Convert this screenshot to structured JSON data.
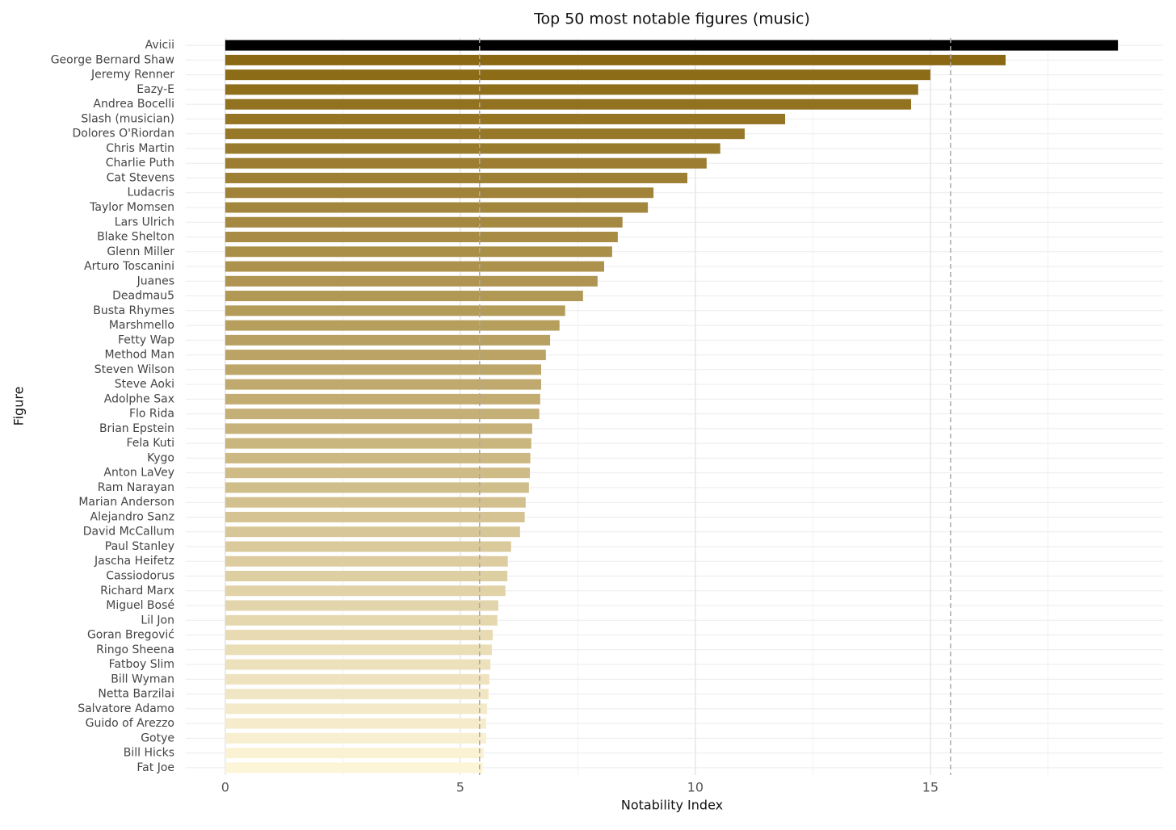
{
  "chart_data": {
    "type": "barh",
    "title": "Top 50 most notable figures (music)",
    "x_label": "Notability Index",
    "y_label": "Figure",
    "categories": [
      "Avicii",
      "George Bernard Shaw",
      "Jeremy Renner",
      "Eazy-E",
      "Andrea Bocelli",
      "Slash (musician)",
      "Dolores O'Riordan",
      "Chris Martin",
      "Charlie Puth",
      "Cat Stevens",
      "Ludacris",
      "Taylor Momsen",
      "Lars Ulrich",
      "Blake Shelton",
      "Glenn Miller",
      "Arturo Toscanini",
      "Juanes",
      "Deadmau5",
      "Busta Rhymes",
      "Marshmello",
      "Fetty Wap",
      "Method Man",
      "Steven Wilson",
      "Steve Aoki",
      "Adolphe Sax",
      "Flo Rida",
      "Brian Epstein",
      "Fela Kuti",
      "Kygo",
      "Anton LaVey",
      "Ram Narayan",
      "Marian Anderson",
      "Alejandro Sanz",
      "David McCallum",
      "Paul Stanley",
      "Jascha Heifetz",
      "Cassiodorus",
      "Richard Marx",
      "Miguel Bosé",
      "Lil Jon",
      "Goran Bregović",
      "Ringo Sheena",
      "Fatboy Slim",
      "Bill Wyman",
      "Netta Barzilai",
      "Salvatore Adamo",
      "Guido of Arezzo",
      "Gotye",
      "Bill Hicks",
      "Fat Joe"
    ],
    "values": [
      18.99,
      16.6,
      15.0,
      14.74,
      14.59,
      11.91,
      11.05,
      10.53,
      10.24,
      9.83,
      9.11,
      8.99,
      8.45,
      8.35,
      8.23,
      8.06,
      7.92,
      7.61,
      7.23,
      7.11,
      6.91,
      6.82,
      6.72,
      6.72,
      6.7,
      6.68,
      6.53,
      6.51,
      6.49,
      6.48,
      6.46,
      6.39,
      6.37,
      6.27,
      6.08,
      6.01,
      6.0,
      5.96,
      5.81,
      5.79,
      5.69,
      5.67,
      5.64,
      5.62,
      5.6,
      5.57,
      5.55,
      5.55,
      5.5,
      5.48
    ],
    "colors": [
      "#000000",
      "#8b6914",
      "#8d6c18",
      "#906f1c",
      "#927220",
      "#957524",
      "#977828",
      "#997b2d",
      "#9c7d31",
      "#9e8035",
      "#a08339",
      "#a3863d",
      "#a58941",
      "#a88c45",
      "#aa8f49",
      "#ac924d",
      "#af9551",
      "#b19855",
      "#b39b59",
      "#b69e5d",
      "#b8a062",
      "#bba366",
      "#bda66a",
      "#bfa96e",
      "#c2ac72",
      "#c4af76",
      "#c6b27a",
      "#c9b57e",
      "#cbb882",
      "#cebb86",
      "#d0be8a",
      "#d2c18e",
      "#d5c393",
      "#d7c697",
      "#d9c99b",
      "#dccc9f",
      "#decfa3",
      "#e1d2a7",
      "#e3d5ab",
      "#e5d8af",
      "#e8dbb3",
      "#eadeb7",
      "#ece1bb",
      "#efe3bf",
      "#f1e6c4",
      "#f4e9c8",
      "#f6eccc",
      "#f8efd0",
      "#fbf2d4",
      "#fdf5d8"
    ],
    "xlim": [
      -0.84,
      19.95
    ],
    "xticks": [
      0,
      5,
      10,
      15
    ],
    "minor_xticks": [
      2.5,
      7.5,
      12.5,
      17.5
    ],
    "reference_lines": [
      5.41,
      15.43
    ],
    "grid": true
  }
}
